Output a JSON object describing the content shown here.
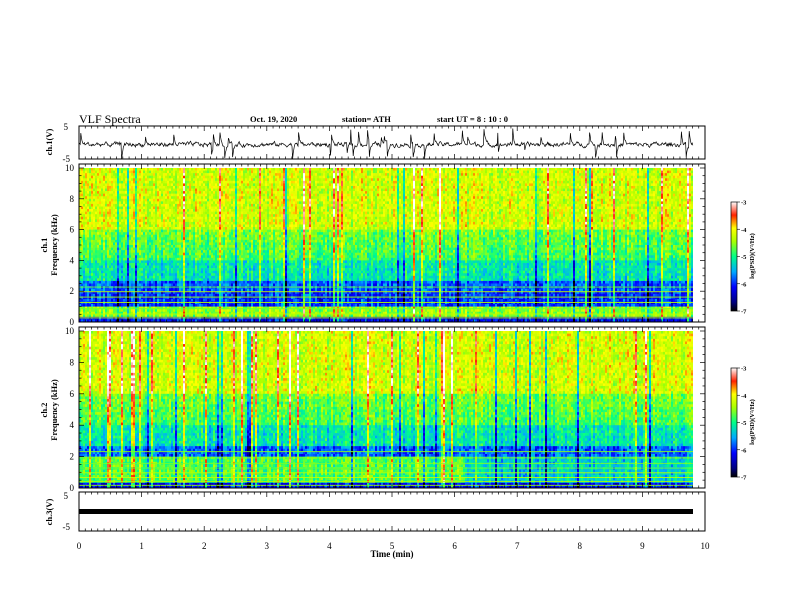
{
  "header": {
    "title": "VLF Spectra",
    "date": "Oct. 19, 2020",
    "station": "station= ATH",
    "start": "start  UT  =   8  : 10 : 0"
  },
  "chart_data": [
    {
      "type": "line",
      "id": "ch1-waveform",
      "ylabel": "ch.1(V)",
      "ylim": [
        -5,
        5
      ],
      "yticks": [
        "5",
        "-5"
      ],
      "xlim": [
        0,
        10
      ],
      "description_color": "#000000"
    },
    {
      "type": "heatmap",
      "id": "ch1-spectrogram",
      "ylabel_line1": "ch.1",
      "ylabel_line2": "Frequency  (kHz)",
      "ylim": [
        0,
        10
      ],
      "yticks": [
        "0",
        "2",
        "4",
        "6",
        "8",
        "10"
      ],
      "xlim": [
        0,
        9.8
      ],
      "colorbar": {
        "label": "log(PSD)(V²/Hz)",
        "range": [
          -7,
          -3
        ],
        "ticks": [
          "-3",
          "-4",
          "-5",
          "-6",
          "-7"
        ]
      }
    },
    {
      "type": "heatmap",
      "id": "ch2-spectrogram",
      "ylabel_line1": "ch.2",
      "ylabel_line2": "Frequency  (kHz)",
      "ylim": [
        0,
        10
      ],
      "yticks": [
        "0",
        "2",
        "4",
        "6",
        "8",
        "10"
      ],
      "xlim": [
        0,
        9.8
      ],
      "colorbar": {
        "label": "log(PSD)(V²/Hz)",
        "range": [
          -7,
          -3
        ],
        "ticks": [
          "-3",
          "-4",
          "-5",
          "-6",
          "-7"
        ]
      }
    },
    {
      "type": "line",
      "id": "ch3-waveform",
      "ylabel": "ch.3(V)",
      "ylim": [
        -5,
        5
      ],
      "yticks": [
        "5",
        "-5"
      ],
      "xlim": [
        0,
        9.8
      ],
      "level": 0
    }
  ],
  "xaxis": {
    "label": "Time  (min)",
    "range": [
      0,
      10
    ],
    "ticks": [
      "0",
      "1",
      "2",
      "3",
      "4",
      "5",
      "6",
      "7",
      "8",
      "9",
      "10"
    ]
  }
}
